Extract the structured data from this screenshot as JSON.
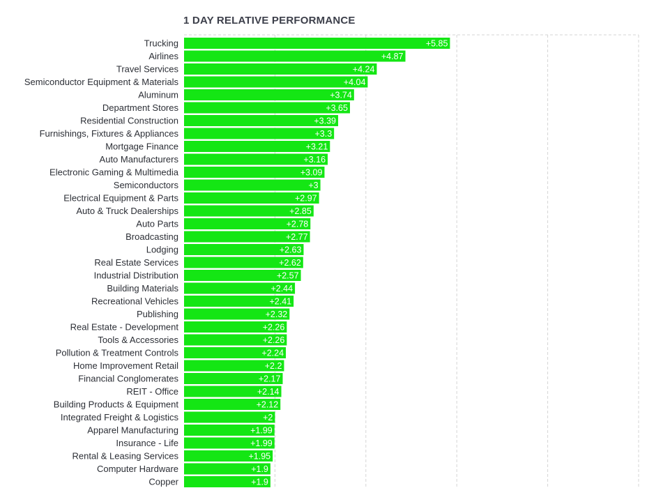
{
  "chart_data": {
    "type": "bar",
    "orientation": "horizontal",
    "title": "1 DAY RELATIVE PERFORMANCE",
    "xlim": [
      0,
      10
    ],
    "grid": true,
    "bar_color": "#14e614",
    "label_color": "#ffffff",
    "categories": [
      "Trucking",
      "Airlines",
      "Travel Services",
      "Semiconductor Equipment & Materials",
      "Aluminum",
      "Department Stores",
      "Residential Construction",
      "Furnishings, Fixtures & Appliances",
      "Mortgage Finance",
      "Auto Manufacturers",
      "Electronic Gaming & Multimedia",
      "Semiconductors",
      "Electrical Equipment & Parts",
      "Auto & Truck Dealerships",
      "Auto Parts",
      "Broadcasting",
      "Lodging",
      "Real Estate Services",
      "Industrial Distribution",
      "Building Materials",
      "Recreational Vehicles",
      "Publishing",
      "Real Estate - Development",
      "Tools & Accessories",
      "Pollution & Treatment Controls",
      "Home Improvement Retail",
      "Financial Conglomerates",
      "REIT - Office",
      "Building Products & Equipment",
      "Integrated Freight & Logistics",
      "Apparel Manufacturing",
      "Insurance - Life",
      "Rental & Leasing Services",
      "Computer Hardware",
      "Copper"
    ],
    "values": [
      5.85,
      4.87,
      4.24,
      4.04,
      3.74,
      3.65,
      3.39,
      3.3,
      3.21,
      3.16,
      3.09,
      3,
      2.97,
      2.85,
      2.78,
      2.77,
      2.63,
      2.62,
      2.57,
      2.44,
      2.41,
      2.32,
      2.26,
      2.26,
      2.24,
      2.2,
      2.17,
      2.14,
      2.12,
      2,
      1.99,
      1.99,
      1.95,
      1.9,
      1.9
    ],
    "value_labels": [
      "+5.85",
      "+4.87",
      "+4.24",
      "+4.04",
      "+3.74",
      "+3.65",
      "+3.39",
      "+3.3",
      "+3.21",
      "+3.16",
      "+3.09",
      "+3",
      "+2.97",
      "+2.85",
      "+2.78",
      "+2.77",
      "+2.63",
      "+2.62",
      "+2.57",
      "+2.44",
      "+2.41",
      "+2.32",
      "+2.26",
      "+2.26",
      "+2.24",
      "+2.2",
      "+2.17",
      "+2.14",
      "+2.12",
      "+2",
      "+1.99",
      "+1.99",
      "+1.95",
      "+1.9",
      "+1.9"
    ]
  }
}
